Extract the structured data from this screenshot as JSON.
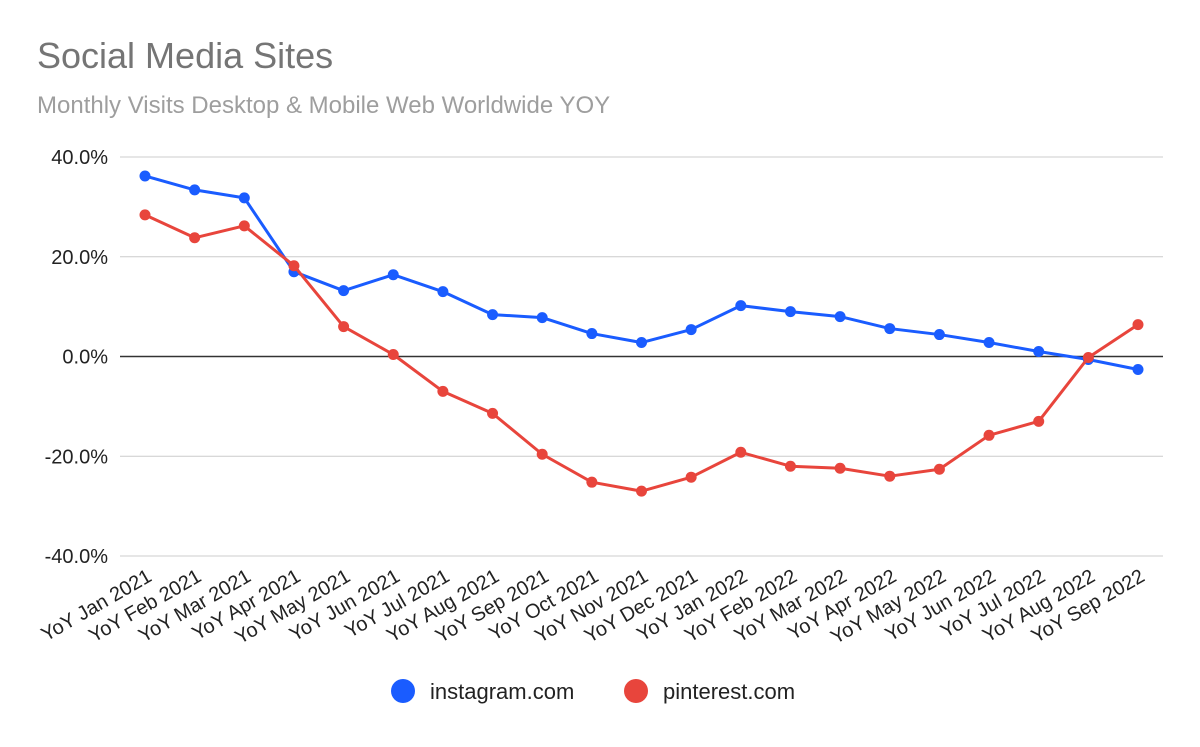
{
  "chart_data": {
    "type": "line",
    "title": "Social Media Sites",
    "subtitle": "Monthly Visits Desktop & Mobile Web Worldwide YOY",
    "xlabel": "",
    "ylabel": "",
    "ylim": [
      -40,
      40
    ],
    "yticks": [
      40,
      20,
      0,
      -20,
      -40
    ],
    "ytick_labels": [
      "40.0%",
      "20.0%",
      "0.0%",
      "-20.0%",
      "-40.0%"
    ],
    "grid": true,
    "legend_position": "bottom",
    "categories": [
      "YoY Jan 2021",
      "YoY Feb 2021",
      "YoY Mar 2021",
      "YoY Apr 2021",
      "YoY May 2021",
      "YoY Jun 2021",
      "YoY Jul 2021",
      "YoY Aug 2021",
      "YoY Sep 2021",
      "YoY Oct 2021",
      "YoY Nov 2021",
      "YoY Dec 2021",
      "YoY Jan 2022",
      "YoY Feb 2022",
      "YoY Mar 2022",
      "YoY Apr 2022",
      "YoY May 2022",
      "YoY Jun 2022",
      "YoY Jul 2022",
      "YoY Aug 2022",
      "YoY Sep 2022"
    ],
    "series": [
      {
        "name": "instagram.com",
        "color": "#1a5cff",
        "values": [
          36.2,
          33.4,
          31.8,
          17.0,
          13.2,
          16.4,
          13.0,
          8.4,
          7.8,
          4.6,
          2.8,
          5.4,
          10.2,
          9.0,
          8.0,
          5.6,
          4.4,
          2.8,
          1.0,
          -0.6,
          -2.6
        ]
      },
      {
        "name": "pinterest.com",
        "color": "#e8453c",
        "values": [
          28.4,
          23.8,
          26.2,
          18.2,
          6.0,
          0.4,
          -7.0,
          -11.4,
          -19.6,
          -25.2,
          -27.0,
          -24.2,
          -19.2,
          -22.0,
          -22.4,
          -24.0,
          -22.6,
          -15.8,
          -13.0,
          -0.2,
          6.4
        ]
      }
    ]
  }
}
